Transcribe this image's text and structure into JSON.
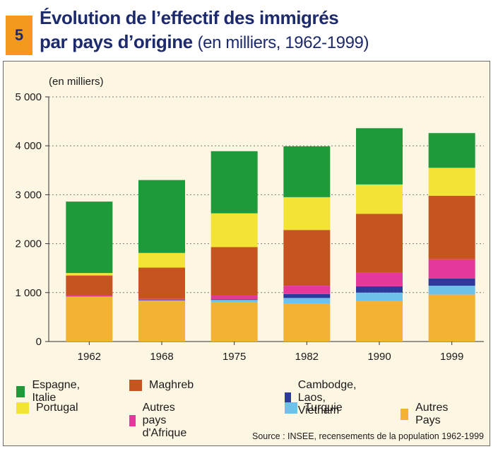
{
  "header": {
    "badge": "5",
    "title_line1": "Évolution de l’effectif des immigrés",
    "title_line2": "par pays d’origine",
    "subtitle": "(en milliers, 1962-1999)"
  },
  "source": "Source : INSEE, recensements de la population 1962-1999",
  "chart_data": {
    "type": "bar",
    "stacked": true,
    "ylabel": "(en milliers)",
    "ylim": [
      0,
      5000
    ],
    "yticks": [
      0,
      1000,
      2000,
      3000,
      4000,
      5000
    ],
    "ytick_labels": [
      "0",
      "1 000",
      "2 000",
      "3 000",
      "4 000",
      "5 000"
    ],
    "grid": "horizontal dotted",
    "categories": [
      "1962",
      "1968",
      "1975",
      "1982",
      "1990",
      "1999"
    ],
    "series": [
      {
        "name": "Autres Pays",
        "color": "#f3b233",
        "values": [
          910,
          830,
          800,
          770,
          830,
          960
        ]
      },
      {
        "name": "Turquie",
        "color": "#6ec1ea",
        "values": [
          10,
          10,
          50,
          120,
          170,
          180
        ]
      },
      {
        "name": "Cambodge, Laos, Vietnam",
        "color": "#2c3a9c",
        "values": [
          0,
          10,
          10,
          80,
          130,
          150
        ]
      },
      {
        "name": "Autres pays d'Afrique",
        "color": "#e6389a",
        "values": [
          20,
          20,
          80,
          170,
          280,
          390
        ]
      },
      {
        "name": "Maghreb",
        "color": "#c5541f",
        "values": [
          410,
          640,
          990,
          1140,
          1200,
          1300
        ]
      },
      {
        "name": "Portugal",
        "color": "#f2e334",
        "values": [
          50,
          300,
          690,
          670,
          600,
          570
        ]
      },
      {
        "name": "Espagne, Italie",
        "color": "#1e9a3a",
        "values": [
          1460,
          1490,
          1270,
          1040,
          1150,
          710
        ]
      }
    ],
    "legend": [
      "Espagne, Italie",
      "Maghreb",
      "Cambodge, Laos, Vietnam",
      "Portugal",
      "Autres pays d'Afrique",
      "Turquie",
      "Autres Pays"
    ]
  }
}
